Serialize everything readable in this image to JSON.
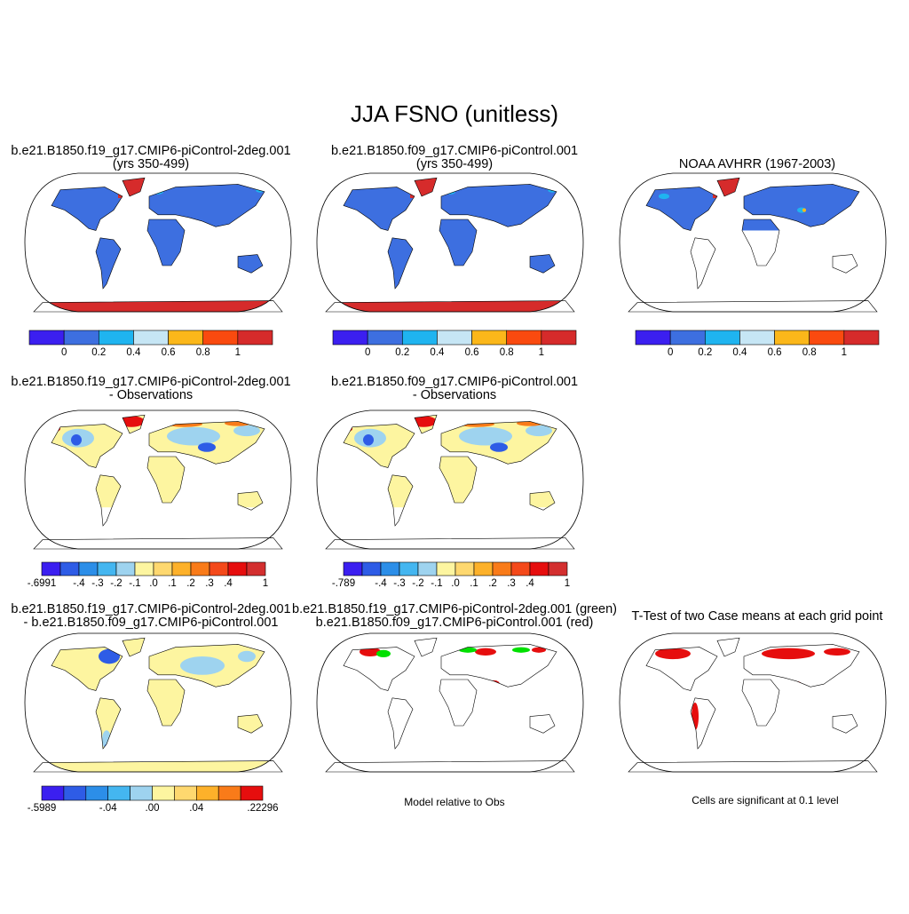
{
  "title": "JJA FSNO (unitless)",
  "panels": [
    {
      "title": [
        "b.e21.B1850.f19_g17.CMIP6-piControl-2deg.001",
        "(yrs 350-499)"
      ],
      "colorbar": {
        "colors": [
          "#3b1ff0",
          "#3d6fe0",
          "#1fb4f0",
          "#c6e6f5",
          "#fbb71a",
          "#fa4a0f",
          "#d62b2b"
        ],
        "labels": [
          "0",
          "0.2",
          "0.4",
          "0.6",
          "0.8",
          "1"
        ]
      }
    },
    {
      "title": [
        "b.e21.B1850.f09_g17.CMIP6-piControl.001",
        "(yrs 350-499)"
      ],
      "colorbar": {
        "colors": [
          "#3b1ff0",
          "#3d6fe0",
          "#1fb4f0",
          "#c6e6f5",
          "#fbb71a",
          "#fa4a0f",
          "#d62b2b"
        ],
        "labels": [
          "0",
          "0.2",
          "0.4",
          "0.6",
          "0.8",
          "1"
        ]
      }
    },
    {
      "title": [
        "NOAA AVHRR (1967-2003)"
      ],
      "colorbar": {
        "colors": [
          "#3b1ff0",
          "#3d6fe0",
          "#1fb4f0",
          "#c6e6f5",
          "#fbb71a",
          "#fa4a0f",
          "#d62b2b"
        ],
        "labels": [
          "0",
          "0.2",
          "0.4",
          "0.6",
          "0.8",
          "1"
        ]
      }
    },
    {
      "title": [
        "b.e21.B1850.f19_g17.CMIP6-piControl-2deg.001",
        "- Observations"
      ],
      "colorbar": {
        "colors": [
          "#3b1ff0",
          "#2e5ce6",
          "#2c8ee8",
          "#44b6f0",
          "#9ed3ef",
          "#fdf5a0",
          "#fed86f",
          "#fdb12a",
          "#f97b19",
          "#f4491a",
          "#e60e0e",
          "#d32f2f"
        ],
        "labels": [
          "-.6991",
          "-.4",
          "-.3",
          "-.2",
          "-.1",
          ".0",
          ".1",
          ".2",
          ".3",
          ".4",
          "1"
        ]
      }
    },
    {
      "title": [
        "b.e21.B1850.f09_g17.CMIP6-piControl.001",
        "- Observations"
      ],
      "colorbar": {
        "colors": [
          "#3b1ff0",
          "#2e5ce6",
          "#2c8ee8",
          "#44b6f0",
          "#9ed3ef",
          "#fdf5a0",
          "#fed86f",
          "#fdb12a",
          "#f97b19",
          "#f4491a",
          "#e60e0e",
          "#d32f2f"
        ],
        "labels": [
          "-.789",
          "-.4",
          "-.3",
          "-.2",
          "-.1",
          ".0",
          ".1",
          ".2",
          ".3",
          ".4",
          "1"
        ]
      }
    },
    {
      "title": [
        "b.e21.B1850.f19_g17.CMIP6-piControl-2deg.001",
        "- b.e21.B1850.f09_g17.CMIP6-piControl.001"
      ],
      "colorbar": {
        "colors": [
          "#3b1ff0",
          "#2e5ce6",
          "#2c8ee8",
          "#44b6f0",
          "#9ed3ef",
          "#fdf5a0",
          "#fed86f",
          "#fdb12a",
          "#f97b19",
          "#e60e0e"
        ],
        "labels": [
          "-.5989",
          "-.04",
          ".00",
          ".04",
          ".22296"
        ]
      }
    },
    {
      "title": [
        "b.e21.B1850.f19_g17.CMIP6-piControl-2deg.001 (green)",
        "b.e21.B1850.f09_g17.CMIP6-piControl.001 (red)"
      ],
      "note": "Model relative to Obs"
    },
    {
      "title": [
        "T-Test of two Case means at each grid point"
      ],
      "note": "Cells are significant at 0.1 level"
    }
  ]
}
